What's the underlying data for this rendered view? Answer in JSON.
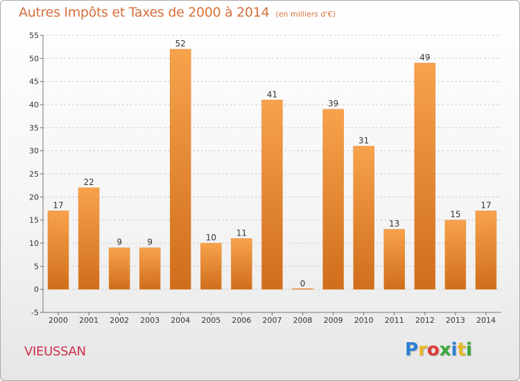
{
  "header": {
    "title": "Autres Impôts et Taxes de 2000 à 2014",
    "subtitle": "(en milliers d'€)"
  },
  "footer": {
    "place": "VIEUSSAN",
    "logo": {
      "letters": [
        "P",
        "r",
        "o",
        "x",
        "i",
        "t",
        "i"
      ],
      "colors": [
        "#2a7fd4",
        "#e8b820",
        "#e03a3a",
        "#3aa83a",
        "#2a7fd4",
        "#e8b820",
        "#3aa83a"
      ]
    }
  },
  "colors": {
    "bar_light": "#f8a24c",
    "bar_dark": "#cf6e1c",
    "title": "#d5703c",
    "grid": "#cccccc",
    "place": "#cc2f4d"
  },
  "chart_data": {
    "type": "bar",
    "categories": [
      "2000",
      "2001",
      "2002",
      "2003",
      "2004",
      "2005",
      "2006",
      "2007",
      "2008",
      "2009",
      "2010",
      "2011",
      "2012",
      "2013",
      "2014"
    ],
    "values": [
      17,
      22,
      9,
      9,
      52,
      10,
      11,
      41,
      0,
      39,
      31,
      13,
      49,
      15,
      17
    ],
    "yticks": [
      -5,
      0,
      5,
      10,
      15,
      20,
      25,
      30,
      35,
      40,
      45,
      50,
      55
    ],
    "ylim": [
      -5,
      55
    ],
    "grid": true,
    "data_labels": true
  }
}
